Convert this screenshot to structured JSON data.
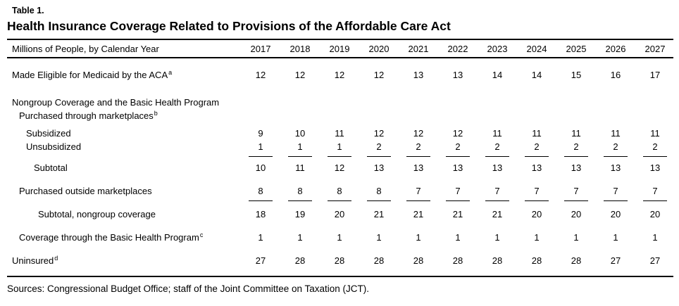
{
  "table_label": "Table 1.",
  "title": "Health Insurance Coverage Related to Provisions of the Affordable Care Act",
  "columns_header": {
    "label": "Millions of People, by Calendar Year",
    "years": [
      "2017",
      "2018",
      "2019",
      "2020",
      "2021",
      "2022",
      "2023",
      "2024",
      "2025",
      "2026",
      "2027"
    ]
  },
  "rows": [
    {
      "id": "medicaid",
      "label": "Made Eligible for Medicaid by the ACA",
      "sup": "a",
      "indent": 0,
      "gap": "lg",
      "values": [
        "12",
        "12",
        "12",
        "12",
        "13",
        "13",
        "14",
        "14",
        "15",
        "16",
        "17"
      ]
    },
    {
      "id": "nongroup-section",
      "label": "Nongroup Coverage and the Basic Health Program",
      "indent": 0,
      "gap": "xl",
      "values": []
    },
    {
      "id": "purchased-marketplaces",
      "label": "Purchased through marketplaces",
      "sup": "b",
      "indent": 1,
      "gap": "none",
      "values": []
    },
    {
      "id": "subsidized",
      "label": "Subsidized",
      "indent": 2,
      "gap": "sm",
      "values": [
        "9",
        "10",
        "11",
        "12",
        "12",
        "12",
        "11",
        "11",
        "11",
        "11",
        "11"
      ]
    },
    {
      "id": "unsubsidized",
      "label": "Unsubsidized",
      "indent": 2,
      "gap": "none",
      "underline": true,
      "values": [
        "1",
        "1",
        "1",
        "2",
        "2",
        "2",
        "2",
        "2",
        "2",
        "2",
        "2"
      ]
    },
    {
      "id": "subtotal-marketplaces",
      "label": "Subtotal",
      "indent": 3,
      "gap": "sm",
      "values": [
        "10",
        "11",
        "12",
        "13",
        "13",
        "13",
        "13",
        "13",
        "13",
        "13",
        "13"
      ]
    },
    {
      "id": "purchased-outside",
      "label": "Purchased outside marketplaces",
      "indent": 1,
      "gap": "lg",
      "underline": true,
      "values": [
        "8",
        "8",
        "8",
        "8",
        "7",
        "7",
        "7",
        "7",
        "7",
        "7",
        "7"
      ]
    },
    {
      "id": "subtotal-nongroup",
      "label": "Subtotal, nongroup coverage",
      "indent": 4,
      "gap": "md",
      "values": [
        "18",
        "19",
        "20",
        "21",
        "21",
        "21",
        "21",
        "20",
        "20",
        "20",
        "20"
      ]
    },
    {
      "id": "coverage-bhp",
      "label": "Coverage through the Basic Health Program",
      "sup": "c",
      "indent": 1,
      "gap": "lg",
      "values": [
        "1",
        "1",
        "1",
        "1",
        "1",
        "1",
        "1",
        "1",
        "1",
        "1",
        "1"
      ]
    },
    {
      "id": "uninsured",
      "label": "Uninsured",
      "sup": "d",
      "indent": 0,
      "gap": "lg",
      "values": [
        "27",
        "28",
        "28",
        "28",
        "28",
        "28",
        "28",
        "28",
        "28",
        "27",
        "27"
      ]
    }
  ],
  "sources": "Sources: Congressional Budget Office; staff of the Joint Committee on Taxation (JCT)."
}
